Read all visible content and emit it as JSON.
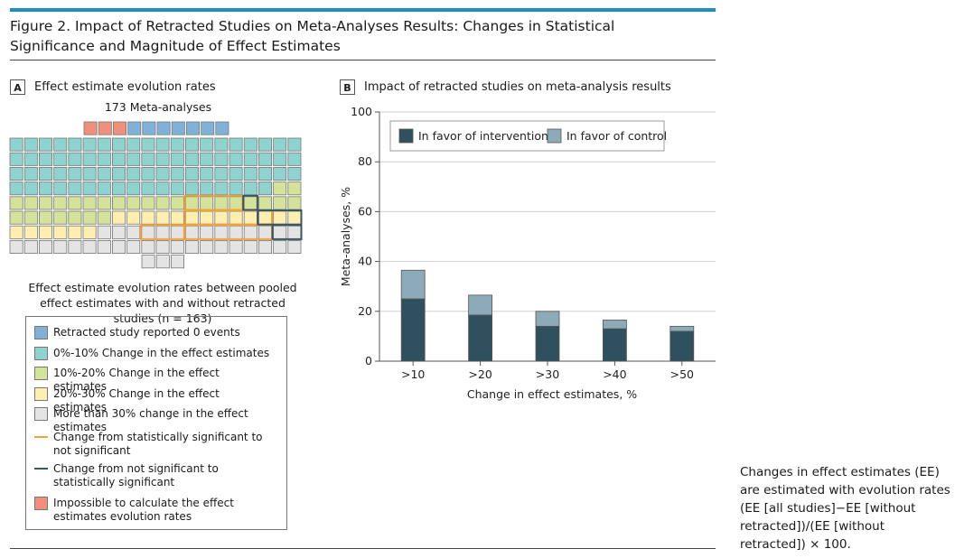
{
  "figure": {
    "title": "Figure 2. Impact of Retracted Studies on Meta-Analyses Results: Changes in Statistical Significance and Magnitude of Effect Estimates",
    "note": "Changes in effect estimates (EE) are estimated with evolution rates (EE [all studies]−EE [without retracted])/(EE [without retracted]) × 100."
  },
  "colors": {
    "retracted_zero": "#7fb1d9",
    "change_0_10": "#8ed3cf",
    "change_10_20": "#d3e39a",
    "change_20_30": "#fcefb0",
    "change_gt30": "#e4e4e4",
    "impossible": "#f0907a",
    "sig_to_nonsig": "#f0a23b",
    "nonsig_to_sig": "#3a5564",
    "intervention": "#2f505e",
    "control": "#8daab8"
  },
  "panel_a": {
    "letter": "A",
    "title": "Effect estimate evolution rates",
    "total_label": "173 Meta-analyses",
    "caption": "Effect estimate evolution rates between pooled effect estimates with and without retracted studies (n = 163)",
    "counts": {
      "impossible": 3,
      "retracted_zero": 7,
      "change_0_10": 78,
      "change_10_20": 29,
      "change_20_30": 19,
      "change_gt30": 37
    },
    "legend": [
      {
        "key": "retracted_zero",
        "kind": "swatch",
        "label": "Retracted study reported 0 events"
      },
      {
        "key": "change_0_10",
        "kind": "swatch",
        "label": "0%-10% Change in the effect estimates"
      },
      {
        "key": "change_10_20",
        "kind": "swatch",
        "label": "10%-20% Change in the effect estimates"
      },
      {
        "key": "change_20_30",
        "kind": "swatch",
        "label": "20%-30% Change in the effect estimates"
      },
      {
        "key": "change_gt30",
        "kind": "swatch",
        "label": "More than 30% change in the effect estimates"
      },
      {
        "key": "sig_to_nonsig",
        "kind": "line",
        "label": "Change from statistically significant to not significant"
      },
      {
        "key": "nonsig_to_sig",
        "kind": "line",
        "label": "Change from not significant to statistically significant"
      },
      {
        "key": "impossible",
        "kind": "swatch",
        "label": "Impossible to calculate the effect estimates evolution rates"
      }
    ]
  },
  "panel_b": {
    "letter": "B",
    "title": "Impact of retracted studies on meta-analysis results"
  },
  "chart_data": {
    "type": "bar",
    "stacked": true,
    "title": "Impact of retracted studies on meta-analysis results",
    "categories": [
      ">10",
      ">20",
      ">30",
      ">40",
      ">50"
    ],
    "series": [
      {
        "name": "In favor of intervention",
        "values": [
          25,
          18.5,
          14,
          13,
          12
        ]
      },
      {
        "name": "In favor of control",
        "values": [
          11.5,
          8,
          6,
          3.5,
          2
        ]
      }
    ],
    "xlabel": "Change in effect estimates, %",
    "ylabel": "Meta-analyses, %",
    "ylim": [
      0,
      100
    ],
    "yticks": [
      0,
      20,
      40,
      60,
      80,
      100
    ],
    "grid": true,
    "legend_position": "top-inside"
  }
}
